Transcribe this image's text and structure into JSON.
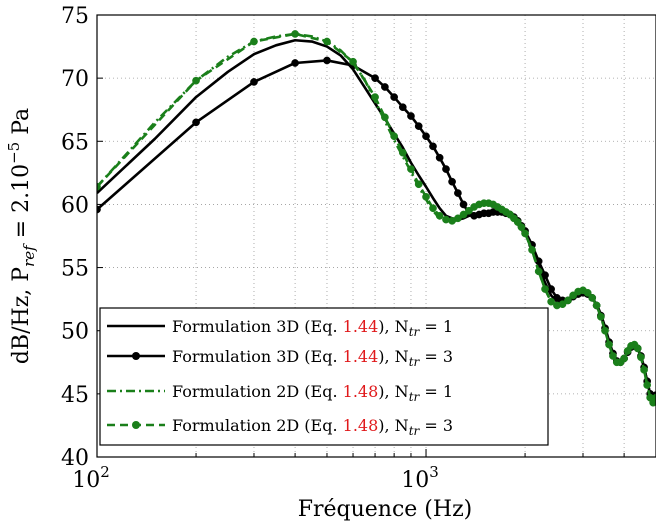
{
  "chart_data": {
    "type": "line",
    "xlabel": "Fréquence (Hz)",
    "ylabel": "dB/Hz, P",
    "ylabel_sub": "ref",
    "ylabel_rest": " = 2.10",
    "ylabel_sup": "−5",
    "ylabel_unit": " Pa",
    "xscale": "log",
    "xlim": [
      100,
      5000
    ],
    "ylim": [
      40,
      75
    ],
    "grid": true,
    "legend_placement": "bottom-left",
    "yticks": [
      40,
      45,
      50,
      55,
      60,
      65,
      70,
      75
    ],
    "yticklabels": [
      "40",
      "45",
      "50",
      "55",
      "60",
      "65",
      "70",
      "75"
    ],
    "xticks": [
      {
        "value": 100,
        "base": "10",
        "exp": "2"
      },
      {
        "value": 1000,
        "base": "10",
        "exp": "3"
      }
    ],
    "series": [
      {
        "name_prefix": "Formulation 3D (Eq. ",
        "name_ref": "1.44",
        "name_suffix": "), N",
        "name_sub": "tr",
        "name_end": " = 1",
        "color": "#000000",
        "style": "solid",
        "marker": false,
        "x": [
          100,
          150,
          200,
          250,
          300,
          350,
          400,
          450,
          500,
          550,
          600,
          650,
          700,
          750,
          800,
          850,
          900,
          950,
          1000,
          1050,
          1100,
          1150,
          1200,
          1250,
          1300,
          1350,
          1400,
          1450,
          1500,
          1550,
          1600,
          1650,
          1700,
          1750,
          1800,
          1850,
          1900,
          1950,
          2000,
          2100,
          2200,
          2300,
          2400,
          2500,
          2600,
          2700,
          2800,
          2900,
          3000,
          3100,
          3200,
          3300,
          3400,
          3500,
          3600,
          3700,
          3800,
          3900,
          4000,
          4100,
          4200,
          4300,
          4400,
          4500,
          4600,
          4700,
          4800,
          4900,
          5000
        ],
        "y": [
          60.9,
          65.2,
          68.5,
          70.5,
          71.9,
          72.6,
          73.0,
          72.9,
          72.5,
          71.8,
          70.7,
          69.3,
          68.0,
          66.8,
          65.6,
          64.5,
          63.3,
          62.3,
          61.4,
          60.5,
          59.7,
          59.1,
          58.9,
          58.8,
          58.9,
          59.1,
          59.2,
          59.3,
          59.3,
          59.4,
          59.5,
          59.6,
          59.5,
          59.4,
          59.2,
          59.0,
          58.7,
          58.3,
          57.8,
          56.6,
          55.1,
          53.8,
          52.8,
          52.3,
          52.2,
          52.3,
          52.6,
          52.9,
          53.0,
          52.9,
          52.6,
          52.1,
          51.3,
          50.3,
          49.2,
          48.2,
          47.6,
          47.5,
          47.8,
          48.3,
          48.7,
          48.8,
          48.6,
          48.0,
          47.1,
          46.0,
          45.0,
          44.6,
          44.9
        ]
      },
      {
        "name_prefix": "Formulation 3D (Eq. ",
        "name_ref": "1.44",
        "name_suffix": "), N",
        "name_sub": "tr",
        "name_end": " = 3",
        "color": "#000000",
        "style": "solid",
        "marker": true,
        "x": [
          100,
          200,
          300,
          400,
          500,
          600,
          700,
          750,
          800,
          850,
          900,
          950,
          1000,
          1050,
          1100,
          1150,
          1200,
          1250,
          1300,
          1350,
          1400,
          1450,
          1500,
          1550,
          1600,
          1650,
          1700,
          1750,
          1800,
          1850,
          1900,
          1950,
          2000,
          2100,
          2200,
          2300,
          2400,
          2500,
          2600,
          2700,
          2800,
          2900,
          3000,
          3100,
          3200,
          3300,
          3400,
          3500,
          3600,
          3700,
          3800,
          3900,
          4000,
          4100,
          4200,
          4300,
          4400,
          4500,
          4600,
          4700,
          4800,
          4900,
          5000
        ],
        "y": [
          59.6,
          66.5,
          69.7,
          71.2,
          71.4,
          71.0,
          70.0,
          69.3,
          68.5,
          67.7,
          67.0,
          66.2,
          65.4,
          64.6,
          63.7,
          62.8,
          61.8,
          60.9,
          60.0,
          59.3,
          59.1,
          59.2,
          59.3,
          59.3,
          59.4,
          59.4,
          59.4,
          59.3,
          59.2,
          59.0,
          58.7,
          58.3,
          57.9,
          56.8,
          55.5,
          54.4,
          53.3,
          52.6,
          52.4,
          52.4,
          52.7,
          52.9,
          53.0,
          52.9,
          52.6,
          52.0,
          51.2,
          50.2,
          49.1,
          48.2,
          47.6,
          47.5,
          47.8,
          48.3,
          48.7,
          48.8,
          48.6,
          48.0,
          47.1,
          46.0,
          45.0,
          44.6,
          44.9
        ]
      },
      {
        "name_prefix": "Formulation 2D (Eq. ",
        "name_ref": "1.48",
        "name_suffix": "), N",
        "name_sub": "tr",
        "name_end": " = 1",
        "color": "#1a7f1a",
        "style": "dashdot",
        "marker": false,
        "x": [
          100,
          150,
          200,
          250,
          300,
          350,
          400,
          450,
          500,
          550,
          600,
          650,
          700,
          750,
          800,
          850,
          900,
          950,
          1000,
          1050,
          1100,
          1150,
          1200,
          1250,
          1300,
          1350,
          1400,
          1450,
          1500,
          1550,
          1600,
          1650,
          1700,
          1750,
          1800,
          1850,
          1900,
          1950,
          2000,
          2100,
          2200,
          2300,
          2400,
          2500,
          2600,
          2700,
          2800,
          2900,
          3000,
          3100,
          3200,
          3300,
          3400,
          3500,
          3600,
          3700,
          3800,
          3900,
          4000,
          4100,
          4200,
          4300,
          4400,
          4500,
          4600,
          4700,
          4800,
          4900,
          5000
        ],
        "y": [
          61.4,
          66.5,
          69.8,
          71.7,
          72.9,
          73.3,
          73.5,
          73.3,
          72.9,
          72.2,
          71.2,
          69.9,
          68.2,
          66.6,
          65.1,
          63.8,
          62.6,
          61.4,
          60.4,
          59.5,
          58.9,
          58.6,
          58.6,
          58.8,
          59.1,
          59.4,
          59.7,
          59.9,
          60.0,
          60.0,
          59.9,
          59.8,
          59.6,
          59.4,
          59.2,
          58.9,
          58.6,
          58.2,
          57.7,
          56.4,
          54.7,
          53.3,
          52.3,
          52.0,
          52.1,
          52.4,
          52.8,
          53.1,
          53.2,
          53.0,
          52.6,
          52.0,
          51.1,
          50.0,
          48.9,
          48.0,
          47.5,
          47.5,
          47.8,
          48.4,
          48.8,
          48.9,
          48.6,
          47.9,
          46.9,
          45.7,
          44.7,
          44.3,
          44.7
        ]
      },
      {
        "name_prefix": "Formulation 2D (Eq. ",
        "name_ref": "1.48",
        "name_suffix": "), N",
        "name_sub": "tr",
        "name_end": " = 3",
        "color": "#1a7f1a",
        "style": "dashed",
        "marker": true,
        "x": [
          100,
          200,
          300,
          400,
          500,
          600,
          700,
          750,
          800,
          850,
          900,
          950,
          1000,
          1050,
          1100,
          1150,
          1200,
          1250,
          1300,
          1350,
          1400,
          1450,
          1500,
          1550,
          1600,
          1650,
          1700,
          1750,
          1800,
          1850,
          1900,
          1950,
          2000,
          2100,
          2200,
          2300,
          2400,
          2500,
          2600,
          2700,
          2800,
          2900,
          3000,
          3100,
          3200,
          3300,
          3400,
          3500,
          3600,
          3700,
          3800,
          3900,
          4000,
          4100,
          4200,
          4300,
          4400,
          4500,
          4600,
          4700,
          4800,
          4900,
          5000
        ],
        "y": [
          61.4,
          69.8,
          72.9,
          73.5,
          72.9,
          71.3,
          68.5,
          66.9,
          65.4,
          64.1,
          62.8,
          61.6,
          60.6,
          59.7,
          59.1,
          58.8,
          58.7,
          58.9,
          59.2,
          59.5,
          59.8,
          60.0,
          60.1,
          60.1,
          60.0,
          59.8,
          59.6,
          59.4,
          59.2,
          58.9,
          58.6,
          58.2,
          57.7,
          56.4,
          54.7,
          53.3,
          52.3,
          52.0,
          52.1,
          52.4,
          52.8,
          53.1,
          53.2,
          53.0,
          52.6,
          52.0,
          51.1,
          50.0,
          48.9,
          48.0,
          47.5,
          47.5,
          47.8,
          48.4,
          48.8,
          48.9,
          48.6,
          47.9,
          46.9,
          45.7,
          44.7,
          44.3,
          44.7
        ]
      }
    ]
  }
}
